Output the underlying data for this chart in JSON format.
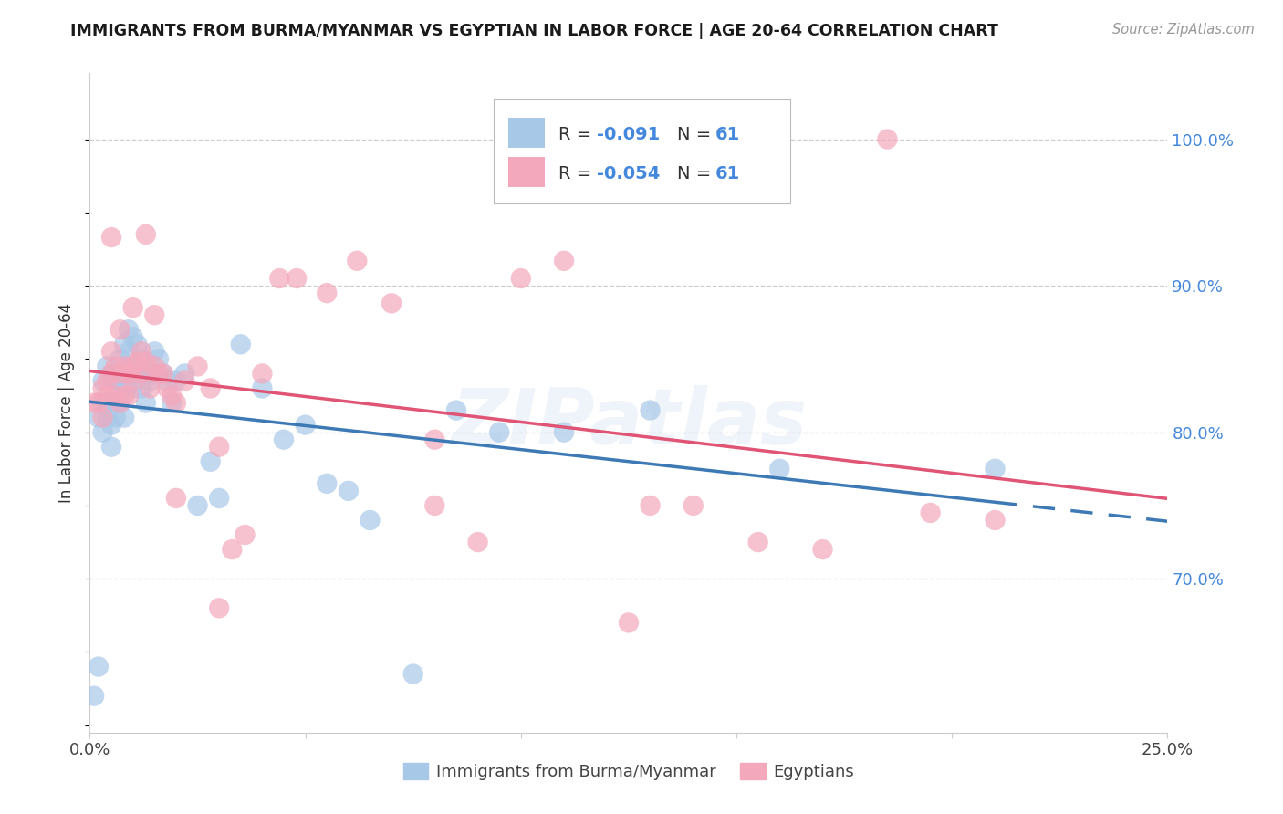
{
  "title": "IMMIGRANTS FROM BURMA/MYANMAR VS EGYPTIAN IN LABOR FORCE | AGE 20-64 CORRELATION CHART",
  "source": "Source: ZipAtlas.com",
  "ylabel": "In Labor Force | Age 20-64",
  "ylabel_right_ticks": [
    0.7,
    0.8,
    0.9,
    1.0
  ],
  "ylabel_right_labels": [
    "70.0%",
    "80.0%",
    "90.0%",
    "100.0%"
  ],
  "xlim": [
    0.0,
    0.25
  ],
  "ylim": [
    0.595,
    1.045
  ],
  "r_burma": -0.091,
  "n_burma": 61,
  "r_egypt": -0.054,
  "n_egypt": 61,
  "legend_label_burma": "Immigrants from Burma/Myanmar",
  "legend_label_egypt": "Egyptians",
  "color_burma": "#a8c8e8",
  "color_egypt": "#f4a8bc",
  "color_burma_line": "#3d7ab5",
  "color_egypt_line": "#e05575",
  "color_right_axis": "#4488dd",
  "color_legend_text": "#4488dd",
  "watermark": "ZIPatlas",
  "burma_x": [
    0.001,
    0.002,
    0.002,
    0.003,
    0.003,
    0.003,
    0.004,
    0.004,
    0.004,
    0.005,
    0.005,
    0.005,
    0.005,
    0.006,
    0.006,
    0.006,
    0.007,
    0.007,
    0.007,
    0.008,
    0.008,
    0.008,
    0.008,
    0.009,
    0.009,
    0.009,
    0.01,
    0.01,
    0.01,
    0.011,
    0.011,
    0.012,
    0.012,
    0.013,
    0.013,
    0.014,
    0.015,
    0.015,
    0.016,
    0.017,
    0.018,
    0.019,
    0.02,
    0.022,
    0.025,
    0.028,
    0.03,
    0.035,
    0.04,
    0.045,
    0.05,
    0.055,
    0.06,
    0.065,
    0.075,
    0.085,
    0.095,
    0.11,
    0.13,
    0.16,
    0.21
  ],
  "burma_y": [
    0.62,
    0.81,
    0.64,
    0.82,
    0.8,
    0.835,
    0.845,
    0.82,
    0.81,
    0.84,
    0.82,
    0.805,
    0.79,
    0.835,
    0.82,
    0.81,
    0.85,
    0.835,
    0.82,
    0.86,
    0.84,
    0.83,
    0.81,
    0.87,
    0.855,
    0.84,
    0.865,
    0.845,
    0.83,
    0.86,
    0.84,
    0.85,
    0.83,
    0.84,
    0.82,
    0.835,
    0.855,
    0.84,
    0.85,
    0.84,
    0.835,
    0.82,
    0.835,
    0.84,
    0.75,
    0.78,
    0.755,
    0.86,
    0.83,
    0.795,
    0.805,
    0.765,
    0.76,
    0.74,
    0.635,
    0.815,
    0.8,
    0.8,
    0.815,
    0.775,
    0.775
  ],
  "egypt_x": [
    0.001,
    0.002,
    0.003,
    0.003,
    0.004,
    0.004,
    0.005,
    0.005,
    0.006,
    0.006,
    0.007,
    0.007,
    0.008,
    0.008,
    0.009,
    0.009,
    0.01,
    0.01,
    0.011,
    0.012,
    0.012,
    0.013,
    0.014,
    0.015,
    0.016,
    0.017,
    0.018,
    0.019,
    0.02,
    0.022,
    0.025,
    0.028,
    0.03,
    0.033,
    0.036,
    0.04,
    0.044,
    0.048,
    0.055,
    0.062,
    0.07,
    0.08,
    0.09,
    0.1,
    0.11,
    0.125,
    0.14,
    0.155,
    0.17,
    0.185,
    0.195,
    0.21,
    0.013,
    0.005,
    0.007,
    0.01,
    0.015,
    0.02,
    0.03,
    0.08,
    0.13
  ],
  "egypt_y": [
    0.82,
    0.82,
    0.81,
    0.83,
    0.835,
    0.825,
    0.855,
    0.84,
    0.845,
    0.825,
    0.84,
    0.82,
    0.845,
    0.825,
    0.84,
    0.825,
    0.845,
    0.835,
    0.848,
    0.855,
    0.84,
    0.848,
    0.83,
    0.845,
    0.84,
    0.84,
    0.83,
    0.825,
    0.82,
    0.835,
    0.845,
    0.83,
    0.79,
    0.72,
    0.73,
    0.84,
    0.905,
    0.905,
    0.895,
    0.917,
    0.888,
    0.75,
    0.725,
    0.905,
    0.917,
    0.67,
    0.75,
    0.725,
    0.72,
    1.0,
    0.745,
    0.74,
    0.935,
    0.933,
    0.87,
    0.885,
    0.88,
    0.755,
    0.68,
    0.795,
    0.75
  ]
}
